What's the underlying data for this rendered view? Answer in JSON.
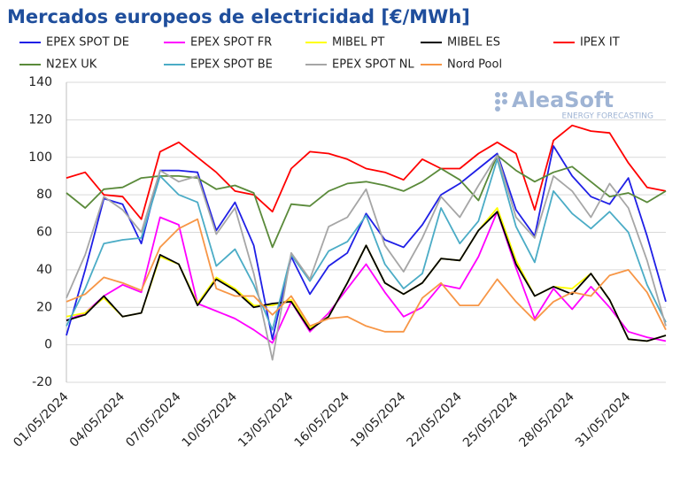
{
  "chart_data": {
    "type": "line",
    "title": "Mercados europeos de electricidad [€/MWh]",
    "watermark": {
      "brand": "AleaSoft",
      "tagline": "ENERGY FORECASTING"
    },
    "categories": [
      "01/05/2024",
      null,
      null,
      "04/05/2024",
      null,
      null,
      "07/05/2024",
      null,
      null,
      "10/05/2024",
      null,
      null,
      "13/05/2024",
      null,
      null,
      "16/05/2024",
      null,
      null,
      "19/05/2024",
      null,
      null,
      "22/05/2024",
      null,
      null,
      "25/05/2024",
      null,
      null,
      "28/05/2024",
      null,
      null,
      "31/05/2024",
      null,
      null
    ],
    "ylim": [
      -20,
      140
    ],
    "yticks": [
      -20,
      0,
      20,
      40,
      60,
      80,
      100,
      120,
      140
    ],
    "grid": true,
    "series": [
      {
        "name": "EPEX SPOT DE",
        "color": "#1f1fe6",
        "values": [
          5,
          40,
          78,
          75,
          54,
          93,
          93,
          92,
          61,
          76,
          53,
          3,
          47,
          27,
          42,
          49,
          70,
          56,
          52,
          64,
          80,
          86,
          94,
          102,
          72,
          58,
          106,
          90,
          79,
          75,
          89,
          58,
          23
        ]
      },
      {
        "name": "EPEX SPOT FR",
        "color": "#ff00ff",
        "values": [
          13,
          17,
          26,
          32,
          28,
          68,
          64,
          22,
          18,
          14,
          8,
          1,
          23,
          7,
          17,
          30,
          43,
          28,
          15,
          20,
          32,
          30,
          47,
          71,
          41,
          14,
          30,
          19,
          31,
          20,
          7,
          4,
          2
        ]
      },
      {
        "name": "MIBEL PT",
        "color": "#ffff00",
        "values": [
          15,
          17,
          25,
          15,
          17,
          47,
          43,
          22,
          36,
          30,
          21,
          21,
          24,
          9,
          15,
          33,
          53,
          33,
          27,
          33,
          46,
          45,
          61,
          73,
          45,
          26,
          31,
          30,
          38,
          24,
          3,
          2,
          5
        ]
      },
      {
        "name": "MIBEL ES",
        "color": "#000000",
        "values": [
          13,
          16,
          26,
          15,
          17,
          48,
          43,
          21,
          35,
          29,
          20,
          22,
          23,
          8,
          15,
          33,
          53,
          33,
          27,
          33,
          46,
          45,
          61,
          71,
          43,
          26,
          31,
          27,
          38,
          24,
          3,
          2,
          5
        ]
      },
      {
        "name": "IPEX IT",
        "color": "#ff0000",
        "values": [
          89,
          92,
          80,
          79,
          67,
          103,
          108,
          100,
          92,
          82,
          80,
          71,
          94,
          103,
          102,
          99,
          94,
          92,
          88,
          99,
          94,
          94,
          102,
          108,
          102,
          72,
          109,
          117,
          114,
          113,
          97,
          84,
          82
        ]
      },
      {
        "name": "N2EX UK",
        "color": "#5a8a3a",
        "values": [
          81,
          73,
          83,
          84,
          89,
          90,
          90,
          89,
          83,
          85,
          81,
          52,
          75,
          74,
          82,
          86,
          87,
          85,
          82,
          87,
          94,
          88,
          77,
          101,
          93,
          87,
          92,
          95,
          87,
          79,
          81,
          76,
          82
        ]
      },
      {
        "name": "EPEX SPOT BE",
        "color": "#4bacc6",
        "values": [
          10,
          30,
          54,
          56,
          57,
          90,
          80,
          76,
          42,
          51,
          32,
          8,
          48,
          34,
          50,
          55,
          69,
          43,
          30,
          38,
          73,
          54,
          66,
          99,
          63,
          44,
          82,
          70,
          62,
          71,
          60,
          32,
          12
        ]
      },
      {
        "name": "EPEX SPOT NL",
        "color": "#a6a6a6",
        "values": [
          25,
          48,
          79,
          72,
          60,
          93,
          87,
          90,
          59,
          73,
          38,
          -8,
          49,
          35,
          63,
          68,
          83,
          53,
          39,
          57,
          79,
          68,
          85,
          101,
          68,
          57,
          90,
          82,
          68,
          86,
          73,
          45,
          10
        ]
      },
      {
        "name": "Nord Pool",
        "color": "#f79646",
        "values": [
          23,
          27,
          36,
          33,
          29,
          52,
          62,
          67,
          30,
          26,
          26,
          16,
          26,
          10,
          14,
          15,
          10,
          7,
          7,
          25,
          33,
          21,
          21,
          35,
          23,
          13,
          23,
          28,
          26,
          37,
          40,
          28,
          8
        ]
      }
    ]
  }
}
